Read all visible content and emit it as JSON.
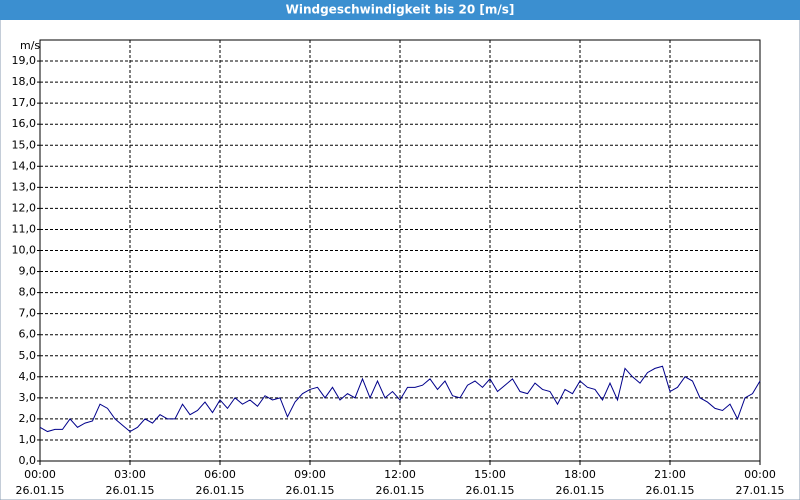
{
  "chart_data": {
    "type": "line",
    "title": "Windgeschwindigkeit bis 20 [m/s]",
    "y_label": "m/s",
    "x": [
      0,
      0.25,
      0.5,
      0.75,
      1,
      1.25,
      1.5,
      1.75,
      2,
      2.25,
      2.5,
      2.75,
      3,
      3.25,
      3.5,
      3.75,
      4,
      4.25,
      4.5,
      4.75,
      5,
      5.25,
      5.5,
      5.75,
      6,
      6.25,
      6.5,
      6.75,
      7,
      7.25,
      7.5,
      7.75,
      8,
      8.25,
      8.5,
      8.75,
      9,
      9.25,
      9.5,
      9.75,
      10,
      10.25,
      10.5,
      10.75,
      11,
      11.25,
      11.5,
      11.75,
      12,
      12.25,
      12.5,
      12.75,
      13,
      13.25,
      13.5,
      13.75,
      14,
      14.25,
      14.5,
      14.75,
      15,
      15.25,
      15.5,
      15.75,
      16,
      16.25,
      16.5,
      16.75,
      17,
      17.25,
      17.5,
      17.75,
      18,
      18.25,
      18.5,
      18.75,
      19,
      19.25,
      19.5,
      19.75,
      20,
      20.25,
      20.5,
      20.75,
      21,
      21.25,
      21.5,
      21.75,
      22,
      22.25,
      22.5,
      22.75,
      23,
      23.25,
      23.5,
      23.75,
      24
    ],
    "series": [
      {
        "color": "#00008b",
        "values": [
          1.6,
          1.4,
          1.5,
          1.5,
          2.0,
          1.6,
          1.8,
          1.9,
          2.7,
          2.5,
          2.0,
          1.7,
          1.4,
          1.6,
          2.0,
          1.8,
          2.2,
          2.0,
          2.0,
          2.7,
          2.2,
          2.4,
          2.8,
          2.3,
          2.9,
          2.5,
          3.0,
          2.7,
          2.9,
          2.6,
          3.1,
          2.9,
          3.0,
          2.1,
          2.8,
          3.2,
          3.4,
          3.5,
          3.0,
          3.5,
          2.9,
          3.2,
          3.0,
          3.9,
          3.0,
          3.8,
          3.0,
          3.3,
          2.9,
          3.5,
          3.5,
          3.6,
          3.9,
          3.4,
          3.8,
          3.1,
          3.0,
          3.6,
          3.8,
          3.5,
          3.9,
          3.3,
          3.6,
          3.9,
          3.3,
          3.2,
          3.7,
          3.4,
          3.3,
          2.7,
          3.4,
          3.2,
          3.8,
          3.5,
          3.4,
          2.9,
          3.7,
          2.9,
          4.4,
          4.0,
          3.7,
          4.2,
          4.4,
          4.5,
          3.3,
          3.5,
          4.0,
          3.8,
          3.0,
          2.8,
          2.5,
          2.4,
          2.7,
          2.0,
          3.0,
          3.2,
          3.8
        ]
      }
    ],
    "xlim": [
      0,
      24
    ],
    "ylim": [
      0,
      20
    ],
    "xticks": [
      {
        "value": 0,
        "label": "00:00"
      },
      {
        "value": 3,
        "label": "03:00"
      },
      {
        "value": 6,
        "label": "06:00"
      },
      {
        "value": 9,
        "label": "09:00"
      },
      {
        "value": 12,
        "label": "12:00"
      },
      {
        "value": 15,
        "label": "15:00"
      },
      {
        "value": 18,
        "label": "18:00"
      },
      {
        "value": 21,
        "label": "21:00"
      },
      {
        "value": 24,
        "label": "00:00"
      }
    ],
    "xtick_dates": [
      "26.01.15",
      "26.01.15",
      "26.01.15",
      "26.01.15",
      "26.01.15",
      "26.01.15",
      "26.01.15",
      "26.01.15",
      "27.01.15"
    ],
    "yticks": [
      {
        "value": 0,
        "label": "0,0"
      },
      {
        "value": 1,
        "label": "1,0"
      },
      {
        "value": 2,
        "label": "2,0"
      },
      {
        "value": 3,
        "label": "3,0"
      },
      {
        "value": 4,
        "label": "4,0"
      },
      {
        "value": 5,
        "label": "5,0"
      },
      {
        "value": 6,
        "label": "6,0"
      },
      {
        "value": 7,
        "label": "7,0"
      },
      {
        "value": 8,
        "label": "8,0"
      },
      {
        "value": 9,
        "label": "9,0"
      },
      {
        "value": 10,
        "label": "10,0"
      },
      {
        "value": 11,
        "label": "11,0"
      },
      {
        "value": 12,
        "label": "12,0"
      },
      {
        "value": 13,
        "label": "13,0"
      },
      {
        "value": 14,
        "label": "14,0"
      },
      {
        "value": 15,
        "label": "15,0"
      },
      {
        "value": 16,
        "label": "16,0"
      },
      {
        "value": 17,
        "label": "17,0"
      },
      {
        "value": 18,
        "label": "18,0"
      },
      {
        "value": 19,
        "label": "19,0"
      }
    ],
    "grid": true
  }
}
